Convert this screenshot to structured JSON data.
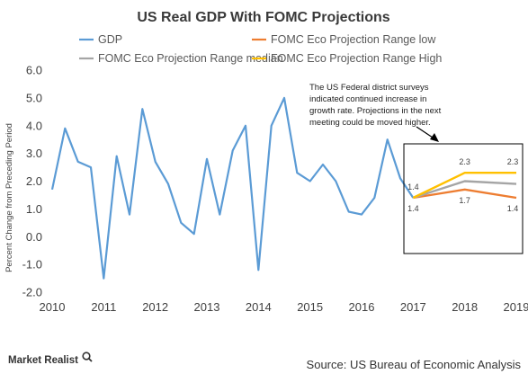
{
  "chart_data": {
    "type": "line",
    "title": "US Real  GDP With FOMC  Projections",
    "ylabel": "Percent Change from Preceding Period",
    "ylim": [
      -2.0,
      6.0
    ],
    "yticks": [
      "-2.0",
      "-1.0",
      "0.0",
      "1.0",
      "2.0",
      "3.0",
      "4.0",
      "5.0",
      "6.0"
    ],
    "xticks": [
      "2010",
      "2011",
      "2012",
      "2013",
      "2014",
      "2015",
      "2016",
      "2017",
      "2018",
      "2019"
    ],
    "xlim": [
      2010,
      2019
    ],
    "grid": false,
    "legend_position": "top",
    "series": [
      {
        "name": "GDP",
        "color": "#5b9bd5",
        "x": [
          2010.0,
          2010.25,
          2010.5,
          2010.75,
          2011.0,
          2011.25,
          2011.5,
          2011.75,
          2012.0,
          2012.25,
          2012.5,
          2012.75,
          2013.0,
          2013.25,
          2013.5,
          2013.75,
          2014.0,
          2014.25,
          2014.5,
          2014.75,
          2015.0,
          2015.25,
          2015.5,
          2015.75,
          2016.0,
          2016.25,
          2016.5,
          2016.75,
          2017.0
        ],
        "values": [
          1.7,
          3.9,
          2.7,
          2.5,
          -1.5,
          2.9,
          0.8,
          4.6,
          2.7,
          1.9,
          0.5,
          0.1,
          2.8,
          0.8,
          3.1,
          4.0,
          -1.2,
          4.0,
          5.0,
          2.3,
          2.0,
          2.6,
          2.0,
          0.9,
          0.8,
          1.4,
          3.5,
          2.1,
          1.4
        ]
      },
      {
        "name": "FOMC Eco Projection Range low",
        "color": "#ed7d31",
        "x": [
          2017,
          2018,
          2019
        ],
        "values": [
          1.4,
          1.7,
          1.4
        ],
        "labels": [
          "1.4",
          "1.7",
          "1.4"
        ]
      },
      {
        "name": "FOMC Eco Projection Range median",
        "color": "#a5a5a5",
        "x": [
          2017,
          2018,
          2019
        ],
        "values": [
          1.4,
          2.0,
          1.9
        ]
      },
      {
        "name": "FOMC Eco Projection Range High",
        "color": "#ffc000",
        "x": [
          2017,
          2018,
          2019
        ],
        "values": [
          1.4,
          2.3,
          2.3
        ],
        "labels": [
          "1.4",
          "2.3",
          "2.3"
        ]
      }
    ],
    "annotation": [
      "The US Federal district surveys",
      "indicated continued increase in",
      "growth rate. Projections in the next",
      "meeting could be moved higher."
    ]
  },
  "footer": {
    "brand": "Market Realist",
    "source": "Source: US Bureau of Economic Analysis"
  }
}
